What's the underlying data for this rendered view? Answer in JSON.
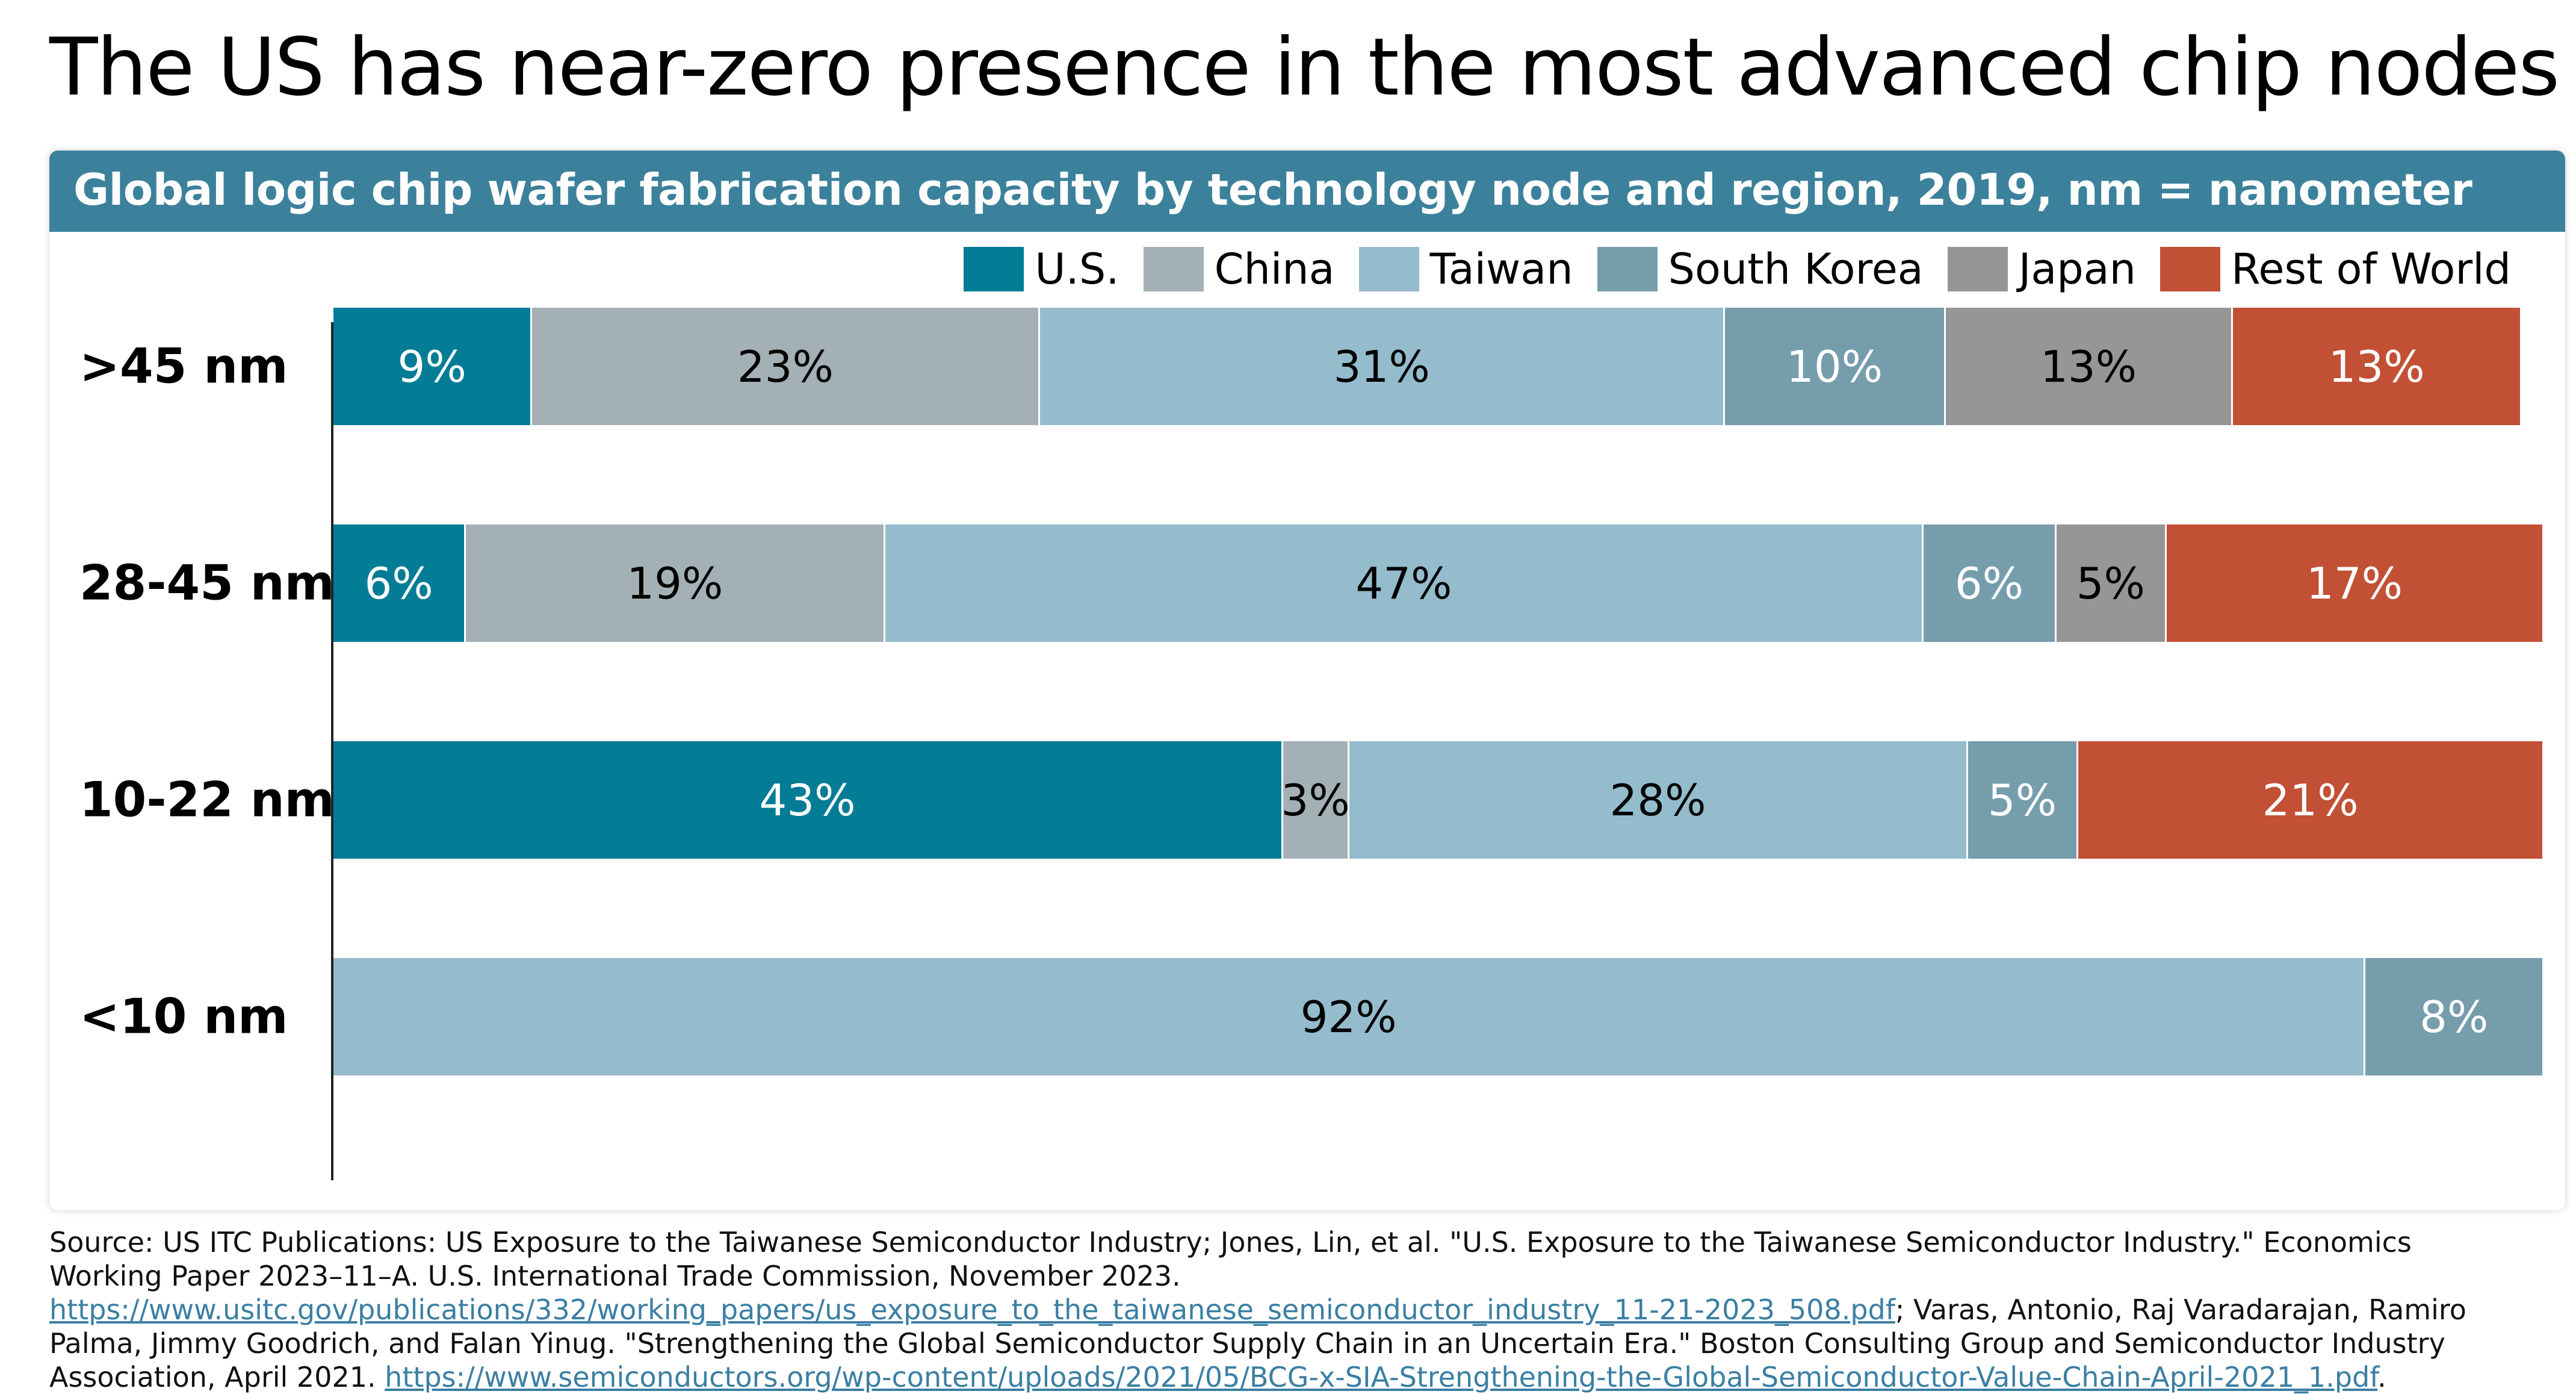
{
  "title": "The US has near-zero presence in the most advanced chip nodes",
  "chart_data": {
    "type": "bar",
    "orientation": "horizontal",
    "stacked": true,
    "title": "Global logic chip wafer fabrication capacity by technology node and region, 2019, nm = nanometer",
    "categories": [
      ">45 nm",
      "28-45 nm",
      "10-22 nm",
      "<10 nm"
    ],
    "series": [
      {
        "name": "U.S.",
        "color": "#037c96",
        "text_color": "#ffffff",
        "values": [
          9,
          6,
          43,
          0
        ]
      },
      {
        "name": "China",
        "color": "#a3b0b5",
        "text_color": "#000000",
        "values": [
          23,
          19,
          3,
          0
        ]
      },
      {
        "name": "Taiwan",
        "color": "#94bccd",
        "text_color": "#000000",
        "values": [
          31,
          47,
          28,
          92
        ]
      },
      {
        "name": "South Korea",
        "color": "#769dac",
        "text_color": "#ffffff",
        "values": [
          10,
          6,
          5,
          8
        ]
      },
      {
        "name": "Japan",
        "color": "#969696",
        "text_color": "#000000",
        "values": [
          13,
          5,
          0,
          0
        ]
      },
      {
        "name": "Rest of World",
        "color": "#c25035",
        "text_color": "#ffffff",
        "values": [
          13,
          17,
          21,
          0
        ]
      }
    ],
    "value_suffix": "%",
    "xlim": [
      0,
      100
    ],
    "legend_position": "top-right"
  },
  "source": {
    "prefix": "Source: US ITC Publications: US Exposure to the Taiwanese Semiconductor Industry; Jones, Lin, et al. \"U.S. Exposure to the Taiwanese Semiconductor Industry.\" Economics Working Paper 2023–11–A. U.S. International Trade Commission, November 2023. ",
    "link1": "https://www.usitc.gov/publications/332/working_papers/us_exposure_to_the_taiwanese_semiconductor_industry_11-21-2023_508.pdf",
    "middle": "; Varas, Antonio, Raj Varadarajan, Ramiro Palma, Jimmy Goodrich, and Falan Yinug. \"Strengthening the Global Semiconductor Supply Chain in an Uncertain Era.\" Boston Consulting Group and Semiconductor Industry Association, April 2021. ",
    "link2": "https://www.semiconductors.org/wp-content/uploads/2021/05/BCG-x-SIA-Strengthening-the-Global-Semiconductor-Value-Chain-April-2021_1.pdf",
    "suffix": "."
  }
}
